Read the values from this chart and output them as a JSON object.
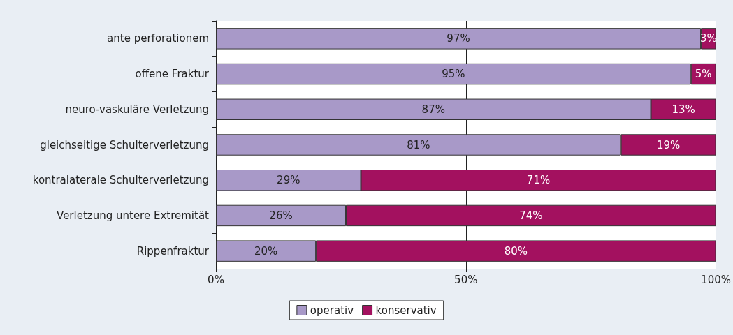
{
  "chart_data": {
    "type": "bar",
    "orientation": "horizontal",
    "stacked": true,
    "categories": [
      "ante perforationem",
      "offene Fraktur",
      "neuro-vaskuläre Verletzung",
      "gleichseitige Schulterverletzung",
      "kontralaterale Schulterverletzung",
      "Verletzung untere Extremität",
      "Rippenfraktur"
    ],
    "series": [
      {
        "name": "operativ",
        "color": "#a899c8",
        "values": [
          97,
          95,
          87,
          81,
          29,
          26,
          20
        ],
        "value_labels": [
          "97%",
          "95%",
          "87%",
          "81%",
          "29%",
          "26%",
          "20%"
        ]
      },
      {
        "name": "konservativ",
        "color": "#a3115f",
        "values": [
          3,
          5,
          13,
          19,
          71,
          74,
          80
        ],
        "value_labels": [
          "3%",
          "5%",
          "13%",
          "19%",
          "71%",
          "74%",
          "80%"
        ]
      }
    ],
    "xlim": [
      0,
      100
    ],
    "xticks": [
      {
        "value": 0,
        "label": "0%"
      },
      {
        "value": 50,
        "label": "50%"
      },
      {
        "value": 100,
        "label": "100%"
      }
    ],
    "grid": "x",
    "legend": "bottom"
  }
}
